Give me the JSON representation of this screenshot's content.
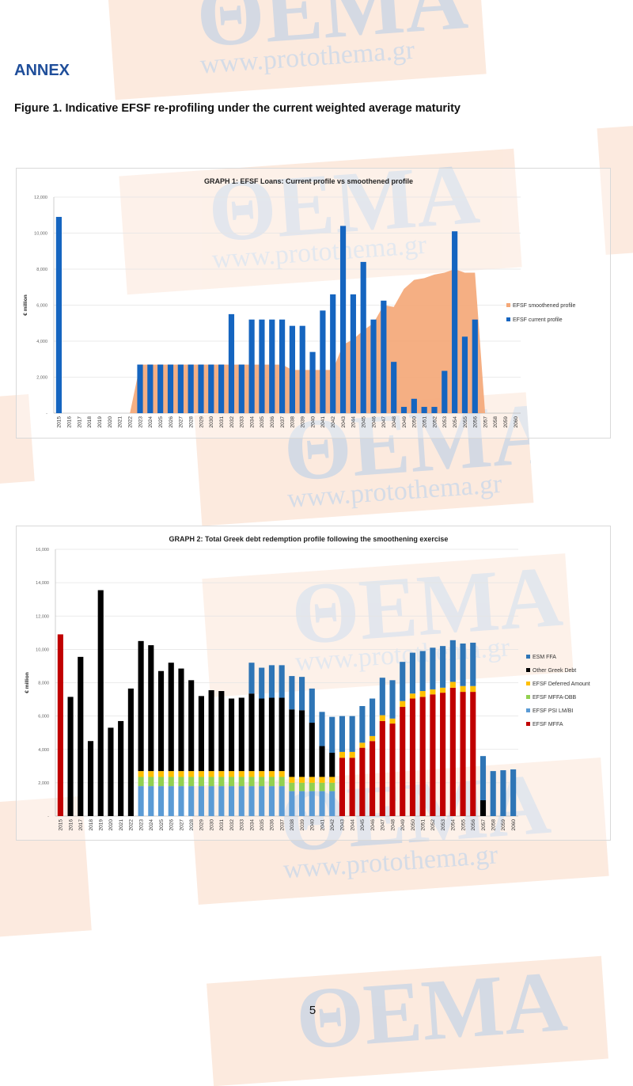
{
  "watermark": {
    "logo": "ΠΡΩΤΟ ΘΕΜΑ.gr",
    "url": "www.protothema.gr"
  },
  "header": {
    "annex": "ANNEX",
    "figure_caption": "Figure 1. Indicative EFSF re-profiling under the current weighted average maturity"
  },
  "footer": {
    "page_number": "5"
  },
  "chart_data": [
    {
      "type": "bar",
      "title": "GRAPH 1: EFSF Loans: Current profile vs smoothened profile",
      "ylabel": "€ million",
      "ylim": [
        0,
        12000
      ],
      "yticks": [
        "-",
        "2,000",
        "4,000",
        "6,000",
        "8,000",
        "10,000",
        "12,000"
      ],
      "grid": true,
      "legend": "right",
      "categories": [
        "2015",
        "2016",
        "2017",
        "2018",
        "2019",
        "2020",
        "2021",
        "2022",
        "2023",
        "2024",
        "2025",
        "2026",
        "2027",
        "2028",
        "2029",
        "2030",
        "2031",
        "2032",
        "2033",
        "2034",
        "2035",
        "2036",
        "2037",
        "2038",
        "2039",
        "2040",
        "2041",
        "2042",
        "2043",
        "2044",
        "2045",
        "2046",
        "2047",
        "2048",
        "2049",
        "2050",
        "2051",
        "2052",
        "2053",
        "2054",
        "2055",
        "2056",
        "2057",
        "2058",
        "2059",
        "2060"
      ],
      "series": [
        {
          "name": "EFSF smoothened profile",
          "kind": "area",
          "color": "#f4a878",
          "values": [
            0,
            0,
            0,
            0,
            0,
            0,
            0,
            0,
            2700,
            2700,
            2700,
            2700,
            2700,
            2700,
            2700,
            2700,
            2700,
            2700,
            2700,
            2700,
            2700,
            2700,
            2700,
            2400,
            2400,
            2400,
            2400,
            2400,
            3800,
            4100,
            4600,
            5000,
            6000,
            5900,
            6900,
            7400,
            7500,
            7700,
            7800,
            8000,
            7800,
            7800,
            0,
            0,
            0,
            0
          ]
        },
        {
          "name": "EFSF current profile",
          "kind": "bar",
          "color": "#1565c0",
          "values": [
            10900,
            0,
            0,
            0,
            0,
            0,
            0,
            0,
            2700,
            2700,
            2700,
            2700,
            2700,
            2700,
            2700,
            2700,
            2700,
            5500,
            2700,
            5200,
            5200,
            5200,
            5200,
            4850,
            4850,
            3400,
            5700,
            6600,
            10400,
            6600,
            8400,
            5200,
            6250,
            2850,
            350,
            800,
            350,
            350,
            2350,
            10100,
            4250,
            5200,
            0,
            0,
            0,
            0
          ]
        }
      ]
    },
    {
      "type": "bar",
      "stacked": true,
      "title": "GRAPH 2: Total Greek debt redemption profile following the smoothening exercise",
      "ylabel": "€ million",
      "ylim": [
        0,
        16000
      ],
      "yticks": [
        "-",
        "2,000",
        "4,000",
        "6,000",
        "8,000",
        "10,000",
        "12,000",
        "14,000",
        "16,000"
      ],
      "grid": true,
      "legend": "right",
      "legend_order": [
        "ESM FFA",
        "Other Greek Debt",
        "EFSF Deferred Amount",
        "EFSF MFFA-DBB",
        "EFSF PSI LM/BI",
        "EFSF MFFA"
      ],
      "categories": [
        "2015",
        "2016",
        "2017",
        "2018",
        "2019",
        "2020",
        "2021",
        "2022",
        "2023",
        "2024",
        "2025",
        "2026",
        "2027",
        "2028",
        "2029",
        "2030",
        "2031",
        "2032",
        "2033",
        "2034",
        "2035",
        "2036",
        "2037",
        "2038",
        "2039",
        "2040",
        "2041",
        "2042",
        "2043",
        "2044",
        "2045",
        "2046",
        "2047",
        "2048",
        "2049",
        "2050",
        "2051",
        "2052",
        "2053",
        "2054",
        "2055",
        "2056",
        "2057",
        "2058",
        "2059",
        "2060"
      ],
      "series": [
        {
          "name": "EFSF MFFA",
          "color": "#c00000",
          "values": [
            10900,
            0,
            0,
            0,
            0,
            0,
            0,
            0,
            0,
            0,
            0,
            0,
            0,
            0,
            0,
            0,
            0,
            0,
            0,
            0,
            0,
            0,
            0,
            0,
            0,
            0,
            0,
            0,
            3500,
            3500,
            4100,
            4500,
            5700,
            5550,
            6550,
            7050,
            7150,
            7300,
            7400,
            7700,
            7450,
            7450,
            0,
            0,
            0,
            0
          ]
        },
        {
          "name": "EFSF PSI LM/BI",
          "color": "#5b9bd5",
          "values": [
            0,
            0,
            0,
            0,
            0,
            0,
            0,
            0,
            1800,
            1800,
            1800,
            1800,
            1800,
            1800,
            1800,
            1800,
            1800,
            1800,
            1800,
            1800,
            1800,
            1800,
            1800,
            1500,
            1500,
            1500,
            1500,
            1500,
            0,
            0,
            0,
            0,
            0,
            0,
            0,
            0,
            0,
            0,
            0,
            0,
            0,
            0,
            0,
            0,
            0,
            0
          ]
        },
        {
          "name": "EFSF MFFA-DBB",
          "color": "#92d050",
          "values": [
            0,
            0,
            0,
            0,
            0,
            0,
            0,
            0,
            550,
            550,
            550,
            550,
            550,
            550,
            550,
            550,
            550,
            550,
            550,
            550,
            550,
            550,
            550,
            500,
            500,
            500,
            500,
            500,
            0,
            0,
            0,
            0,
            0,
            0,
            0,
            0,
            0,
            0,
            0,
            0,
            0,
            0,
            0,
            0,
            0,
            0
          ]
        },
        {
          "name": "EFSF Deferred Amount",
          "color": "#ffc000",
          "values": [
            0,
            0,
            0,
            0,
            0,
            0,
            0,
            0,
            350,
            350,
            350,
            350,
            350,
            350,
            350,
            350,
            350,
            350,
            350,
            350,
            350,
            350,
            350,
            350,
            350,
            350,
            350,
            350,
            350,
            350,
            300,
            300,
            350,
            300,
            350,
            300,
            350,
            300,
            300,
            350,
            350,
            350,
            0,
            0,
            0,
            0
          ]
        },
        {
          "name": "Other Greek Debt",
          "color": "#000000",
          "values": [
            0,
            7150,
            9550,
            4500,
            13550,
            5300,
            5700,
            7650,
            7800,
            7550,
            6000,
            6500,
            6150,
            5450,
            4500,
            4850,
            4800,
            4350,
            4400,
            4650,
            4350,
            4400,
            4400,
            4050,
            4000,
            3250,
            1850,
            1450,
            0,
            0,
            0,
            0,
            0,
            0,
            0,
            0,
            0,
            0,
            0,
            0,
            0,
            0,
            950,
            0,
            0,
            0
          ]
        },
        {
          "name": "ESM FFA",
          "color": "#2e75b6",
          "values": [
            0,
            0,
            0,
            0,
            0,
            0,
            0,
            0,
            0,
            0,
            0,
            0,
            0,
            0,
            0,
            0,
            0,
            0,
            0,
            1850,
            1850,
            1950,
            1950,
            2000,
            2000,
            2050,
            2050,
            2150,
            2150,
            2150,
            2200,
            2250,
            2250,
            2300,
            2350,
            2450,
            2400,
            2500,
            2500,
            2500,
            2550,
            2600,
            2650,
            2700,
            2750,
            2800
          ]
        }
      ]
    }
  ]
}
